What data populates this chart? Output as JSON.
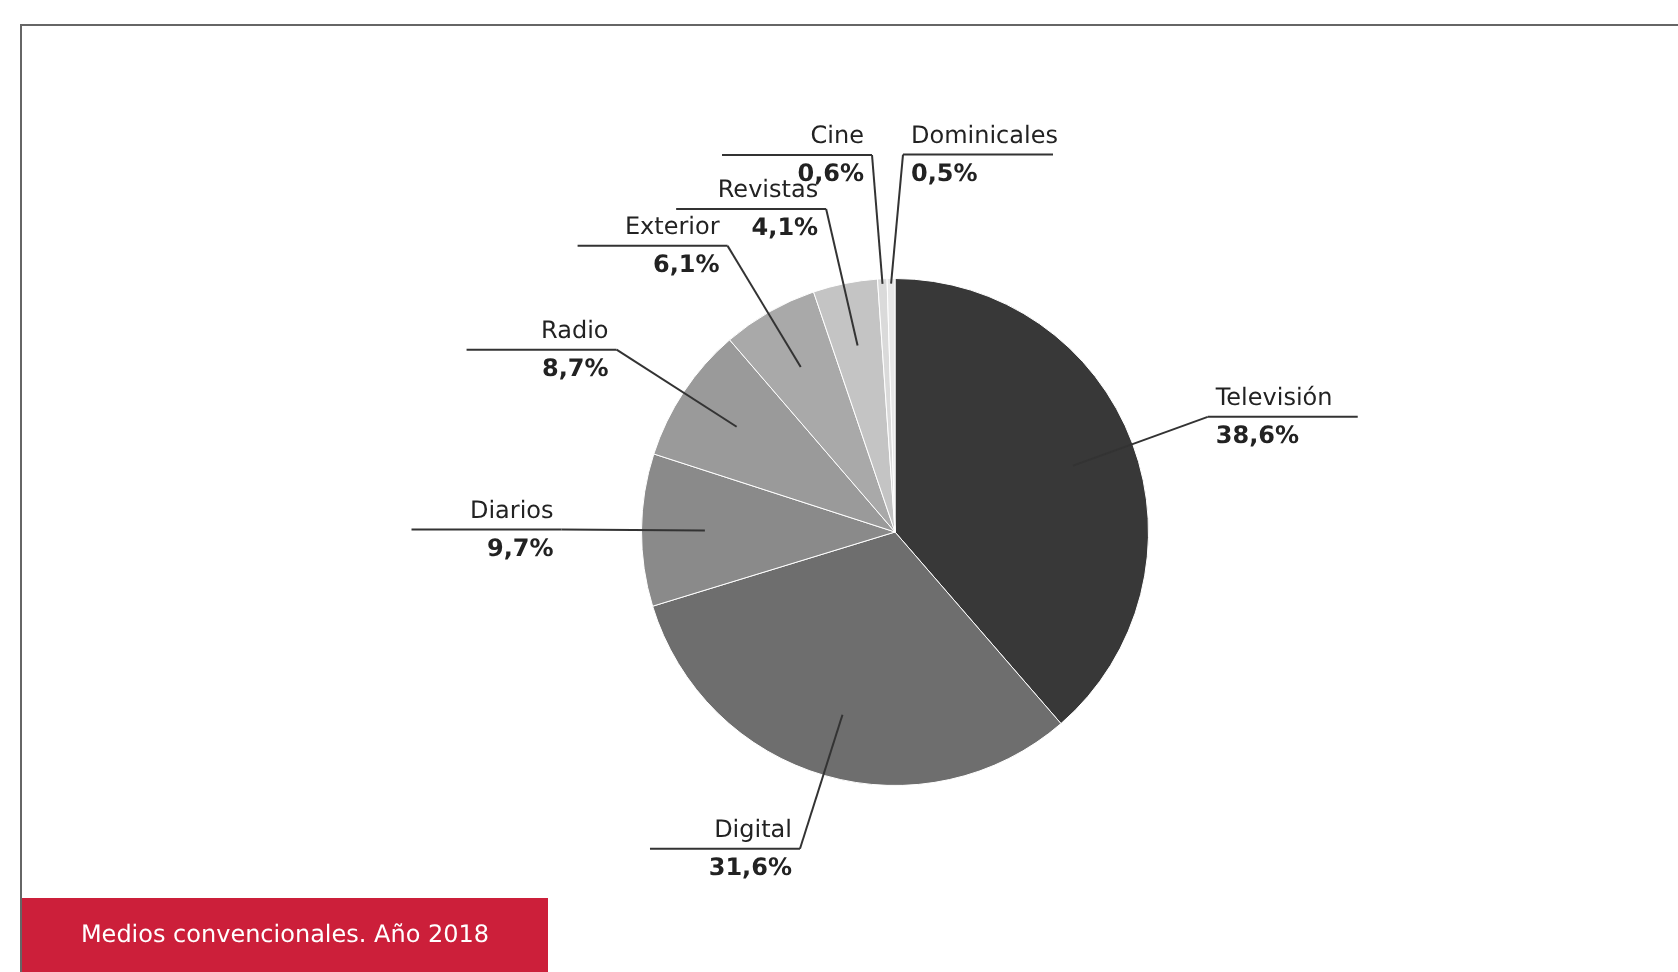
{
  "chart_data": {
    "type": "pie",
    "title": "Medios convencionales. Año 2018",
    "categories": [
      "Televisión",
      "Digital",
      "Diarios",
      "Radio",
      "Exterior",
      "Revistas",
      "Cine",
      "Dominicales"
    ],
    "values": [
      38.6,
      31.6,
      9.7,
      8.7,
      6.1,
      4.1,
      0.6,
      0.5
    ],
    "value_labels": [
      "38,6%",
      "31,6%",
      "9,7%",
      "8,7%",
      "6,1%",
      "4,1%",
      "0,6%",
      "0,5%"
    ],
    "colors": [
      "#383838",
      "#6e6e6e",
      "#8a8a8a",
      "#9a9a9a",
      "#a9a9a9",
      "#c4c4c4",
      "#dadada",
      "#e8e8e8"
    ],
    "legend": false
  }
}
